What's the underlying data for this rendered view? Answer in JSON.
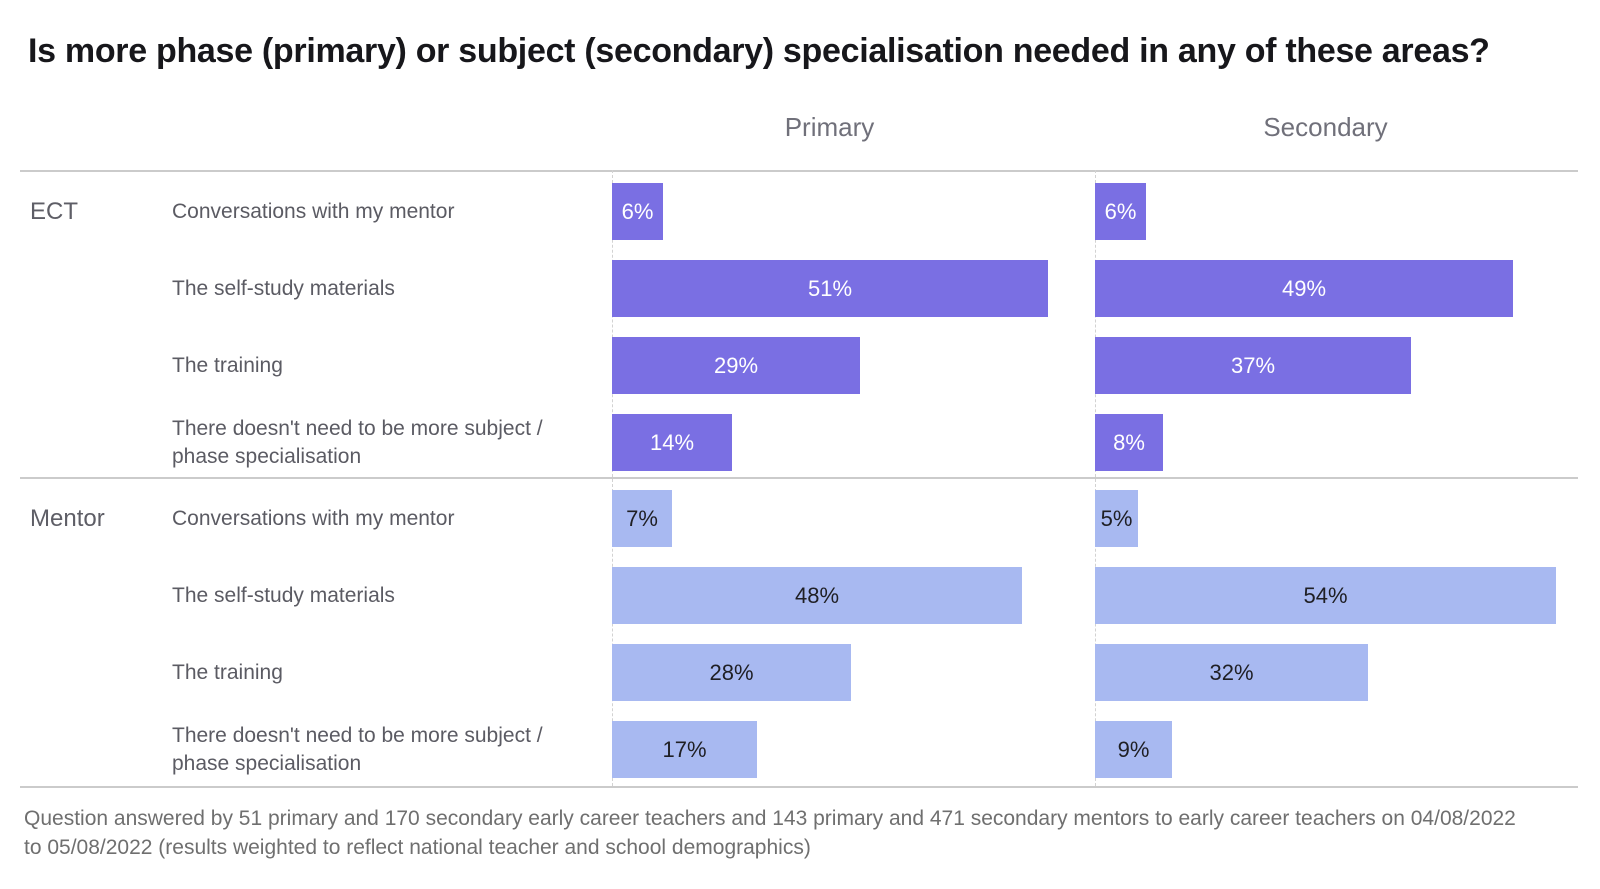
{
  "title": "Is more phase (primary) or subject (secondary) specialisation needed in any of these areas?",
  "footnote": "Question answered by 51 primary and 170 secondary early career teachers and 143 primary and 471 secondary mentors to early career teachers on 04/08/2022 to 05/08/2022 (results weighted to reflect national teacher and school demographics)",
  "colors": {
    "ect_bar": "#7a6fe3",
    "ect_bar_text": "#ffffff",
    "mentor_bar": "#a8b9f1",
    "mentor_bar_text": "#1f1f24",
    "divider": "#cbcbcb"
  },
  "chart_data": {
    "type": "bar",
    "orientation": "horizontal",
    "unit": "%",
    "title": "Is more phase (primary) or subject (secondary) specialisation needed in any of these areas?",
    "columns": [
      "Primary",
      "Secondary"
    ],
    "categories": [
      "Conversations with my mentor",
      "The self-study materials",
      "The training",
      "There doesn't need to be more subject / phase specialisation"
    ],
    "groups": [
      {
        "name": "ECT",
        "series": [
          {
            "name": "Primary",
            "values": [
              6,
              51,
              29,
              14
            ]
          },
          {
            "name": "Secondary",
            "values": [
              6,
              49,
              37,
              8
            ]
          }
        ]
      },
      {
        "name": "Mentor",
        "series": [
          {
            "name": "Primary",
            "values": [
              7,
              48,
              28,
              17
            ]
          },
          {
            "name": "Secondary",
            "values": [
              5,
              54,
              32,
              9
            ]
          }
        ]
      }
    ],
    "xlim": [
      0,
      56
    ],
    "value_labels": "inside-center",
    "grid": "off",
    "legend": "none"
  }
}
